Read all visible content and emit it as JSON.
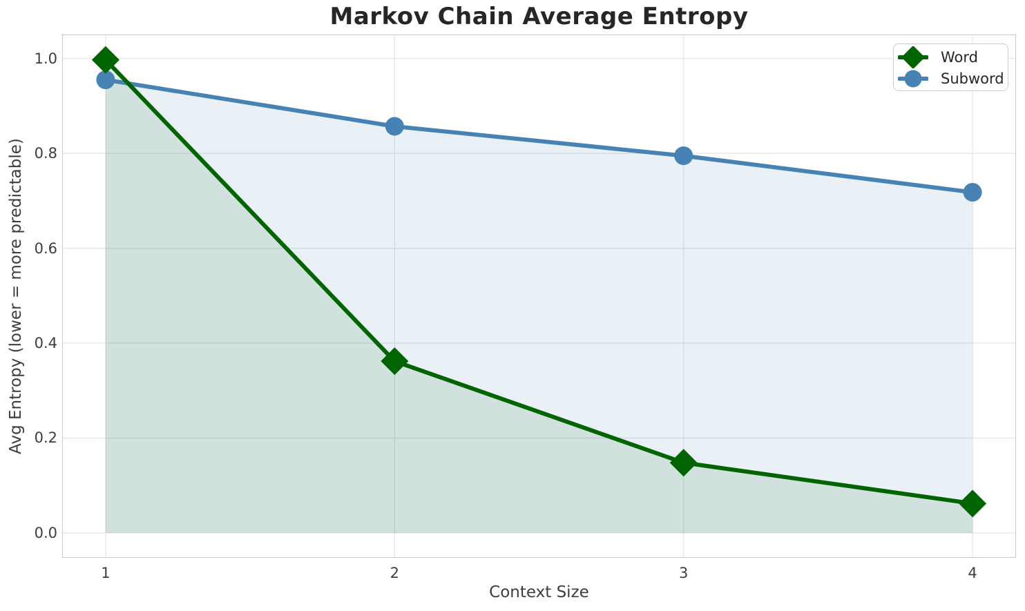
{
  "chart_data": {
    "type": "line",
    "title": "Markov Chain Average Entropy",
    "xlabel": "Context Size",
    "ylabel": "Avg Entropy (lower = more predictable)",
    "x": [
      1,
      2,
      3,
      4
    ],
    "xticks": [
      1,
      2,
      3,
      4
    ],
    "xtick_labels": [
      "1",
      "2",
      "3",
      "4"
    ],
    "yticks": [
      0.0,
      0.2,
      0.4,
      0.6,
      0.8,
      1.0
    ],
    "ytick_labels": [
      "0.0",
      "0.2",
      "0.4",
      "0.6",
      "0.8",
      "1.0"
    ],
    "xlim": [
      0.852,
      4.148
    ],
    "ylim": [
      -0.051,
      1.049
    ],
    "grid": true,
    "legend_position": "upper right",
    "series": [
      {
        "name": "Word",
        "marker": "diamond",
        "color": "#006400",
        "fill_opacity": 0.1,
        "area": true,
        "values": [
          0.997,
          0.362,
          0.148,
          0.062
        ]
      },
      {
        "name": "Subword",
        "marker": "circle",
        "color": "#4682b4",
        "fill_opacity": 0.12,
        "area": true,
        "values": [
          0.955,
          0.857,
          0.795,
          0.718
        ]
      }
    ]
  },
  "colors": {
    "background": "#ffffff",
    "grid": "#e4e4e4",
    "spine": "#c9c9c9",
    "title_text": "#262626",
    "tick_text": "#3d3d3d"
  }
}
